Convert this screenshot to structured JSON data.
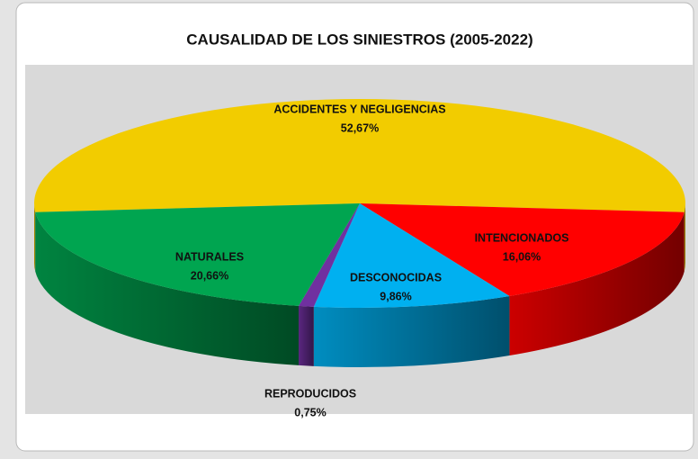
{
  "chart_data": {
    "type": "pie3d",
    "title": "CAUSALIDAD DE LOS SINIESTROS (2005-2022)",
    "categories": [
      "ACCIDENTES Y NEGLIGENCIAS",
      "INTENCIONADOS",
      "DESCONOCIDAS",
      "REPRODUCIDOS",
      "NATURALES"
    ],
    "values": [
      52.67,
      16.06,
      9.86,
      0.75,
      20.66
    ],
    "value_labels": [
      "52,67%",
      "16,06%",
      "9,86%",
      "0,75%",
      "20,66%"
    ],
    "colors": [
      "#f2cc00",
      "#ff0000",
      "#00b0f0",
      "#7030a0",
      "#00a550"
    ]
  }
}
